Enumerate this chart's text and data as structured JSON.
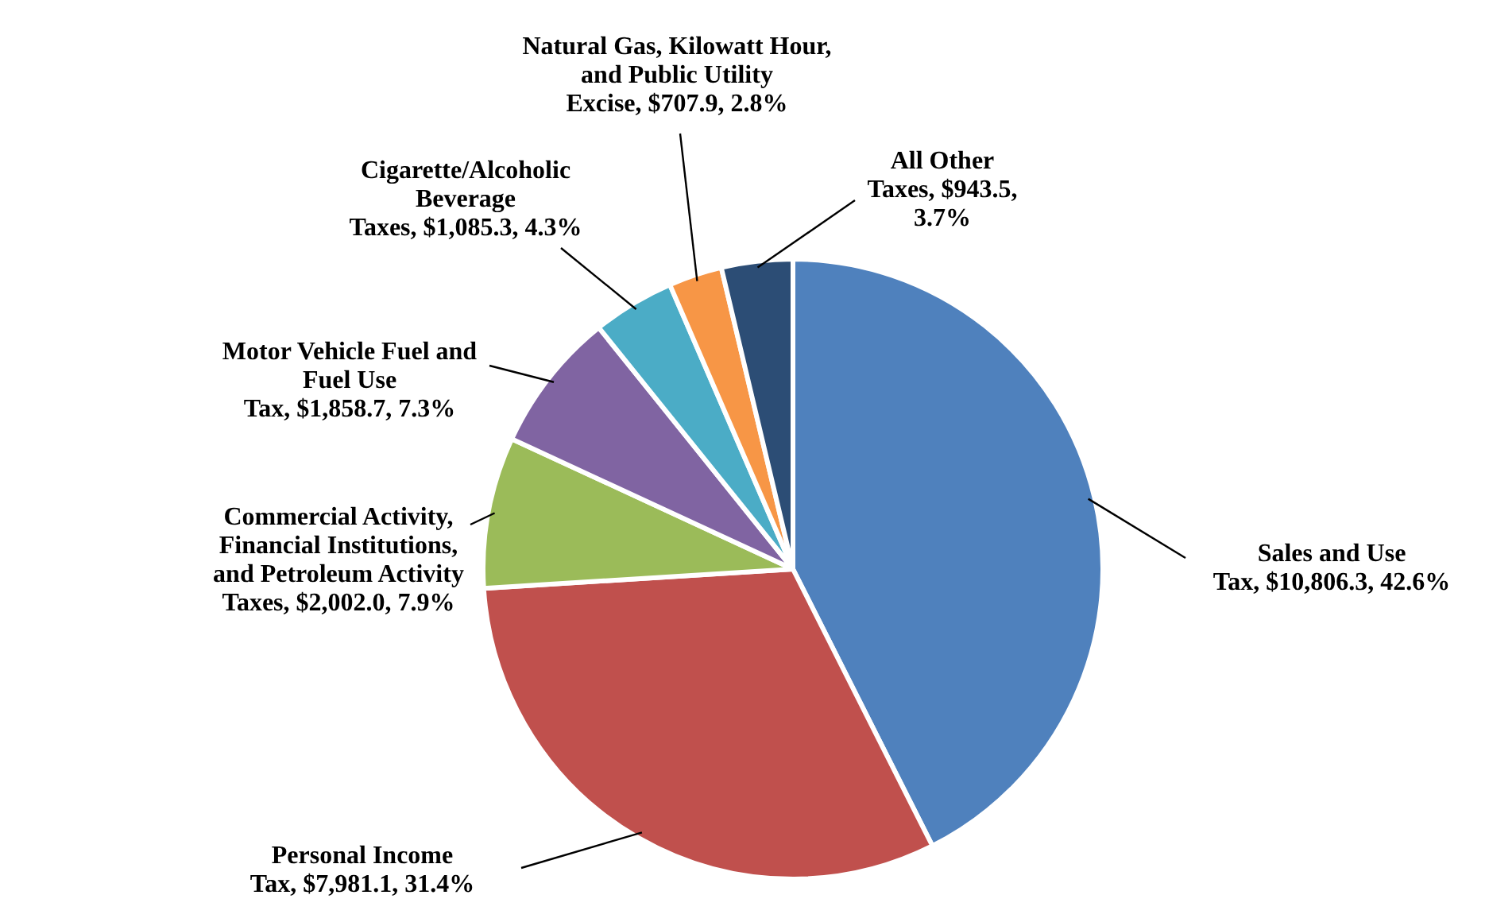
{
  "chart_data": {
    "type": "pie",
    "categories": [
      "Sales and Use Tax",
      "Personal Income Tax",
      "Commercial Activity, Financial Institutions, and Petroleum Activity Taxes",
      "Motor Vehicle Fuel and Fuel Use Tax",
      "Cigarette/Alcoholic Beverage Taxes",
      "Natural Gas, Kilowatt Hour, and Public Utility Excise",
      "All Other Taxes"
    ],
    "values": [
      10806.3,
      7981.1,
      2002.0,
      1858.7,
      1085.3,
      707.9,
      943.5
    ],
    "value_labels": [
      "$10,806.3, 42.6%",
      "$7,981.1, 31.4%",
      "$2,002.0, 7.9%",
      "$1,858.7, 7.3%",
      "$1,085.3, 4.3%",
      "$707.9, 2.8%",
      "$943.5, 3.7%"
    ],
    "colors": [
      "#4f81bd",
      "#c0504d",
      "#9bbb59",
      "#8064a2",
      "#4bacc6",
      "#f79646",
      "#2c4d75"
    ]
  }
}
